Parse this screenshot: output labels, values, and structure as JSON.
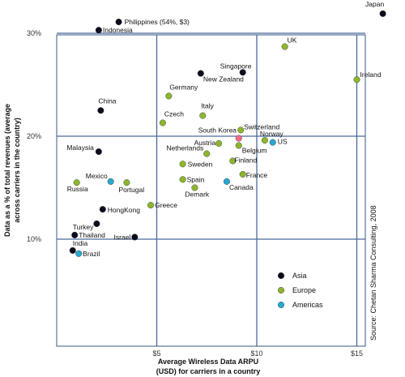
{
  "chart_data": {
    "type": "scatter",
    "xlabel": "Average Wireless Data ARPU (USD) for carriers in a country",
    "ylabel": "Data as a % of total revenues (average across carriers in the country)",
    "xlim": [
      0,
      16.5
    ],
    "ylim": [
      4,
      32
    ],
    "x_ticks": [
      {
        "value": 5,
        "label": "$5"
      },
      {
        "value": 10,
        "label": "$10"
      },
      {
        "value": 15,
        "label": "$15"
      }
    ],
    "y_ticks": [
      {
        "value": 10,
        "label": "10%"
      },
      {
        "value": 20,
        "label": "20%"
      },
      {
        "value": 30,
        "label": "30%"
      }
    ],
    "grid": true,
    "source": "Source: Chetan Sharma Consulting, 2008",
    "legend_position": "bottom-right",
    "series": [
      {
        "name": "Asia",
        "color": "#0c0c1e",
        "points": [
          {
            "label": "Japan",
            "x": 16.3,
            "y": 31.9
          },
          {
            "label": "Philippines (54%, $3)",
            "x": 3.1,
            "y": 31.1
          },
          {
            "label": "Indonesia",
            "x": 2.1,
            "y": 30.3
          },
          {
            "label": "Singapore",
            "x": 9.3,
            "y": 26.2
          },
          {
            "label": "New Zealand",
            "x": 7.2,
            "y": 26.1
          },
          {
            "label": "China",
            "x": 2.2,
            "y": 22.5
          },
          {
            "label": "Malaysia",
            "x": 2.1,
            "y": 18.5
          },
          {
            "label": "HongKong",
            "x": 2.3,
            "y": 12.9
          },
          {
            "label": "Turkey",
            "x": 2.0,
            "y": 11.5
          },
          {
            "label": "Thailand",
            "x": 0.9,
            "y": 10.4
          },
          {
            "label": "Israel",
            "x": 3.9,
            "y": 10.2
          },
          {
            "label": "India",
            "x": 0.8,
            "y": 8.9
          }
        ]
      },
      {
        "name": "Europe",
        "color": "#8db62e",
        "points": [
          {
            "label": "UK",
            "x": 11.4,
            "y": 28.7
          },
          {
            "label": "Ireland",
            "x": 15.0,
            "y": 25.5
          },
          {
            "label": "Germany",
            "x": 5.6,
            "y": 23.9
          },
          {
            "label": "Italy",
            "x": 7.3,
            "y": 22.0
          },
          {
            "label": "Czech",
            "x": 5.3,
            "y": 21.3
          },
          {
            "label": "Switzerland",
            "x": 9.2,
            "y": 20.6
          },
          {
            "label": "Norway",
            "x": 10.4,
            "y": 19.6
          },
          {
            "label": "Austria",
            "x": 8.1,
            "y": 19.3
          },
          {
            "label": "Belgium",
            "x": 9.1,
            "y": 19.1
          },
          {
            "label": "Netherlands",
            "x": 7.5,
            "y": 18.3
          },
          {
            "label": "Finland",
            "x": 8.8,
            "y": 17.6
          },
          {
            "label": "Sweden",
            "x": 6.3,
            "y": 17.3
          },
          {
            "label": "France",
            "x": 9.3,
            "y": 16.3
          },
          {
            "label": "Spain",
            "x": 6.3,
            "y": 15.8
          },
          {
            "label": "Demark",
            "x": 6.9,
            "y": 15.0
          },
          {
            "label": "Russia",
            "x": 1.0,
            "y": 15.5
          },
          {
            "label": "Portugal",
            "x": 3.5,
            "y": 15.5
          },
          {
            "label": "Greece",
            "x": 4.7,
            "y": 13.3
          }
        ]
      },
      {
        "name": "Americas",
        "color": "#2aa7cf",
        "points": [
          {
            "label": "US",
            "x": 10.8,
            "y": 19.4
          },
          {
            "label": "Canada",
            "x": 8.5,
            "y": 15.6
          },
          {
            "label": "Mexico",
            "x": 2.7,
            "y": 15.6
          },
          {
            "label": "Brazil",
            "x": 1.1,
            "y": 8.6
          }
        ]
      }
    ],
    "highlight": {
      "label": "South Korea",
      "x": 9.1,
      "y": 19.8,
      "color": "#ee6b8a"
    }
  }
}
